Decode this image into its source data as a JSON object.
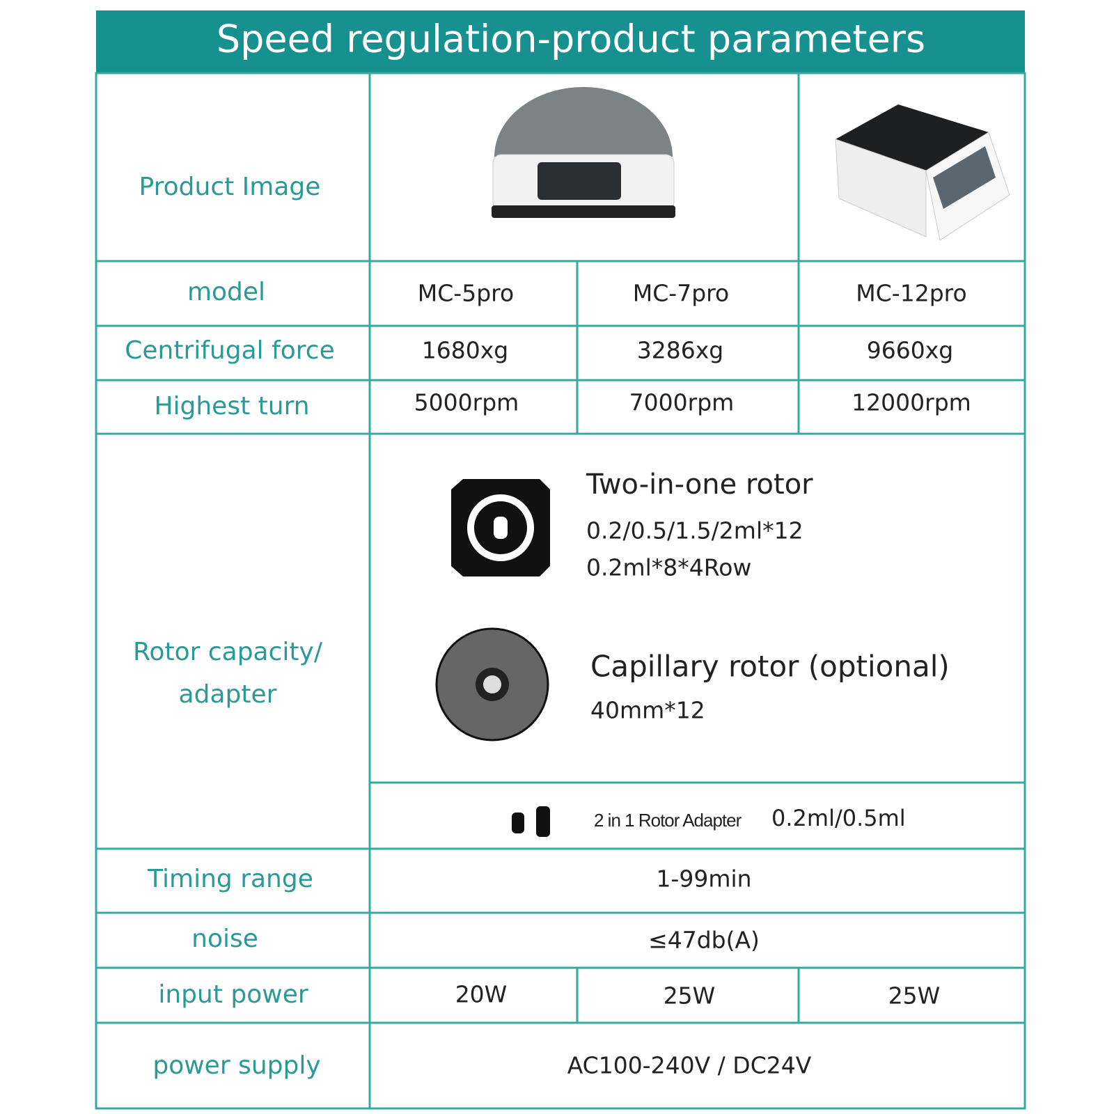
{
  "header": {
    "title": "Speed regulation-product parameters"
  },
  "table": {
    "product_image": {
      "label": "Product Image"
    },
    "model": {
      "label": "model",
      "cells": [
        "MC-5pro",
        "MC-7pro",
        "MC-12pro"
      ]
    },
    "centrifugal_force": {
      "label": "Centrifugal force",
      "cells": [
        "1680xg",
        "3286xg",
        "9660xg"
      ]
    },
    "highest_turn": {
      "label": "Highest turn",
      "cells": [
        "5000rpm",
        "7000rpm",
        "12000rpm"
      ]
    },
    "rotor": {
      "label": [
        "Rotor capacity/",
        "adapter"
      ],
      "rotors": [
        {
          "name": "Two-in-one rotor",
          "specs": [
            "0.2/0.5/1.5/2ml*12",
            "0.2ml*8*4Row"
          ]
        },
        {
          "name": "Capillary rotor (optional)",
          "specs": [
            "40mm*12"
          ]
        }
      ],
      "adapter": {
        "name": "2 in 1 Rotor Adapter",
        "spec": "0.2ml/0.5ml"
      }
    },
    "timing_range": {
      "label": "Timing range",
      "value": "1-99min"
    },
    "noise": {
      "label": "noise",
      "value": "≤47db(A)"
    },
    "input_power": {
      "label": "input power",
      "cells": [
        "20W",
        "25W",
        "25W"
      ]
    },
    "power_supply": {
      "label": "power supply",
      "value": "AC100-240V / DC24V"
    }
  }
}
